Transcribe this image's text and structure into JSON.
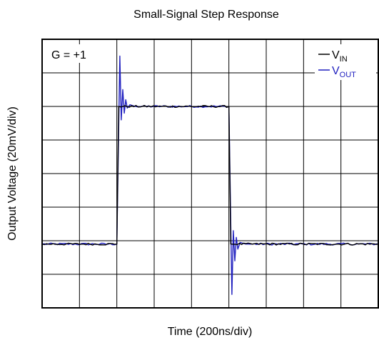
{
  "chart_data": {
    "type": "line",
    "title": "Small-Signal Step Response",
    "xlabel": "Time (200ns/div)",
    "ylabel": "Output Voltage (20mV/div)",
    "annotation": "G = +1",
    "x_divisions": 9,
    "y_divisions": 8,
    "xlim": [
      0,
      9
    ],
    "ylim": [
      0,
      8
    ],
    "grid": true,
    "legend_position": "top-right",
    "series": [
      {
        "name_main": "V",
        "name_sub": "IN",
        "color": "#000000",
        "x": [
          0,
          2,
          2.05,
          5,
          5.05,
          9
        ],
        "y": [
          1.9,
          1.9,
          6.0,
          6.0,
          1.9,
          1.9
        ]
      },
      {
        "name_main": "V",
        "name_sub": "OUT",
        "color": "#1f1fbf",
        "x": [
          0,
          2,
          2.08,
          2.12,
          2.16,
          2.2,
          2.24,
          2.28,
          2.35,
          2.5,
          5,
          5.08,
          5.12,
          5.16,
          5.2,
          5.24,
          5.3,
          5.45,
          9
        ],
        "y": [
          1.9,
          1.9,
          7.5,
          5.6,
          6.5,
          5.8,
          6.2,
          5.95,
          6.05,
          6.0,
          6.0,
          0.4,
          2.3,
          1.4,
          2.1,
          1.75,
          1.95,
          1.9,
          1.9
        ]
      }
    ]
  }
}
